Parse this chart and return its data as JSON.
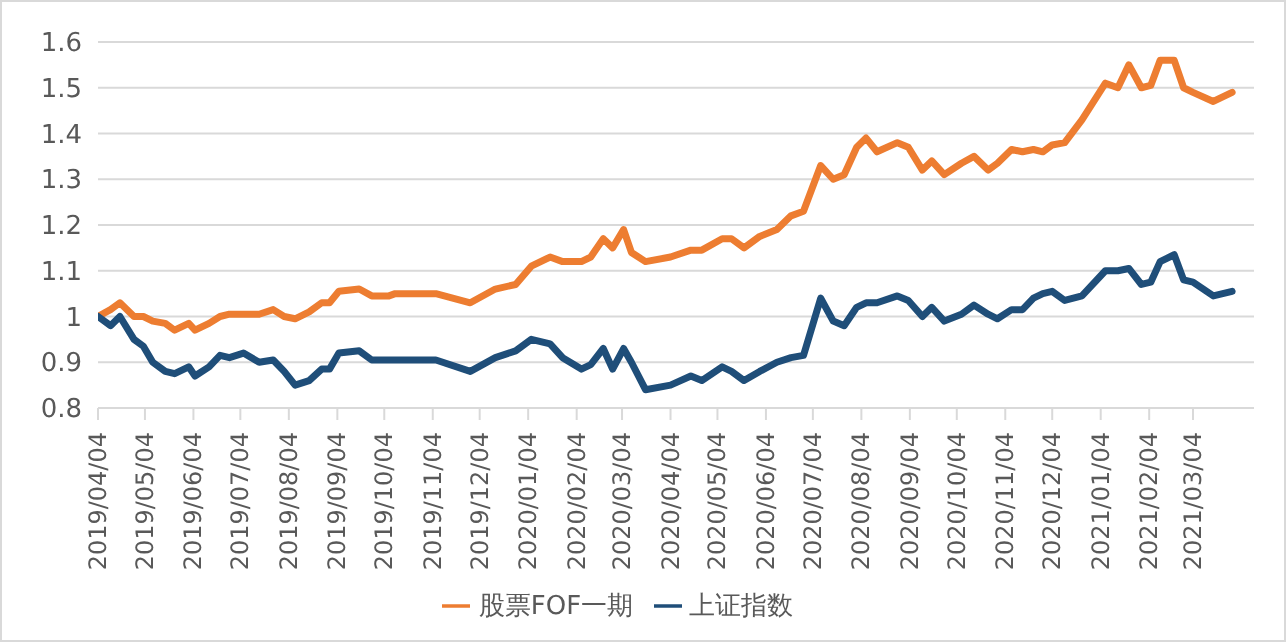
{
  "chart_data": {
    "type": "line",
    "x": [
      "2019-04-04",
      "2019-04-12",
      "2019-04-18",
      "2019-04-27",
      "2019-05-03",
      "2019-05-09",
      "2019-05-17",
      "2019-05-23",
      "2019-06-01",
      "2019-06-05",
      "2019-06-14",
      "2019-06-21",
      "2019-06-27",
      "2019-07-06",
      "2019-07-16",
      "2019-07-25",
      "2019-08-01",
      "2019-08-08",
      "2019-08-17",
      "2019-08-25",
      "2019-08-30",
      "2019-09-05",
      "2019-09-18",
      "2019-09-26",
      "2019-10-07",
      "2019-10-11",
      "2019-10-24",
      "2019-11-06",
      "2019-11-28",
      "2019-12-14",
      "2019-12-27",
      "2020-01-06",
      "2020-01-18",
      "2020-01-26",
      "2020-02-07",
      "2020-02-13",
      "2020-02-21",
      "2020-02-27",
      "2020-03-05",
      "2020-03-10",
      "2020-03-19",
      "2020-04-04",
      "2020-04-17",
      "2020-04-24",
      "2020-05-07",
      "2020-05-13",
      "2020-05-21",
      "2020-05-31",
      "2020-06-11",
      "2020-06-20",
      "2020-06-28",
      "2020-07-09",
      "2020-07-17",
      "2020-07-24",
      "2020-08-01",
      "2020-08-07",
      "2020-08-14",
      "2020-08-27",
      "2020-09-03",
      "2020-09-12",
      "2020-09-18",
      "2020-09-26",
      "2020-10-07",
      "2020-10-15",
      "2020-10-24",
      "2020-10-30",
      "2020-11-08",
      "2020-11-15",
      "2020-11-22",
      "2020-11-28",
      "2020-12-04",
      "2020-12-12",
      "2020-12-23",
      "2021-01-07",
      "2021-01-15",
      "2021-01-22",
      "2021-01-30",
      "2021-02-05",
      "2021-02-11",
      "2021-02-20",
      "2021-02-26",
      "2021-03-04",
      "2021-03-17",
      "2021-03-29"
    ],
    "series": [
      {
        "name": "股票FOF一期",
        "color": "#ed7d31",
        "values": [
          1.0,
          1.015,
          1.03,
          1.0,
          1.0,
          0.99,
          0.985,
          0.97,
          0.985,
          0.97,
          0.985,
          1.0,
          1.005,
          1.005,
          1.005,
          1.015,
          1.0,
          0.995,
          1.01,
          1.03,
          1.03,
          1.055,
          1.06,
          1.045,
          1.045,
          1.05,
          1.05,
          1.05,
          1.03,
          1.06,
          1.07,
          1.11,
          1.13,
          1.12,
          1.12,
          1.13,
          1.17,
          1.15,
          1.19,
          1.14,
          1.12,
          1.13,
          1.145,
          1.145,
          1.17,
          1.17,
          1.15,
          1.175,
          1.19,
          1.22,
          1.23,
          1.33,
          1.3,
          1.31,
          1.37,
          1.39,
          1.36,
          1.38,
          1.37,
          1.32,
          1.34,
          1.31,
          1.335,
          1.35,
          1.32,
          1.335,
          1.365,
          1.36,
          1.365,
          1.36,
          1.375,
          1.38,
          1.43,
          1.51,
          1.5,
          1.55,
          1.5,
          1.505,
          1.56,
          1.56,
          1.5,
          1.49,
          1.47,
          1.49
        ]
      },
      {
        "name": "上证指数",
        "color": "#1f4e79",
        "values": [
          1.0,
          0.98,
          1.0,
          0.95,
          0.935,
          0.9,
          0.88,
          0.875,
          0.89,
          0.87,
          0.89,
          0.915,
          0.91,
          0.92,
          0.9,
          0.905,
          0.88,
          0.85,
          0.86,
          0.885,
          0.885,
          0.92,
          0.925,
          0.905,
          0.905,
          0.905,
          0.905,
          0.905,
          0.88,
          0.91,
          0.925,
          0.95,
          0.94,
          0.91,
          0.885,
          0.895,
          0.93,
          0.885,
          0.93,
          0.9,
          0.84,
          0.85,
          0.87,
          0.86,
          0.89,
          0.88,
          0.86,
          0.88,
          0.9,
          0.91,
          0.915,
          1.04,
          0.99,
          0.98,
          1.02,
          1.03,
          1.03,
          1.045,
          1.035,
          1.0,
          1.02,
          0.99,
          1.005,
          1.025,
          1.005,
          0.995,
          1.015,
          1.015,
          1.04,
          1.05,
          1.055,
          1.035,
          1.045,
          1.1,
          1.1,
          1.105,
          1.07,
          1.075,
          1.12,
          1.135,
          1.08,
          1.075,
          1.045,
          1.055
        ]
      }
    ],
    "xlim": [
      "2019-04-04",
      "2021-04-12"
    ],
    "xticks": [
      {
        "value": "2019-04-04",
        "label": "2019/04/04"
      },
      {
        "value": "2019-05-04",
        "label": "2019/05/04"
      },
      {
        "value": "2019-06-04",
        "label": "2019/06/04"
      },
      {
        "value": "2019-07-04",
        "label": "2019/07/04"
      },
      {
        "value": "2019-08-04",
        "label": "2019/08/04"
      },
      {
        "value": "2019-09-04",
        "label": "2019/09/04"
      },
      {
        "value": "2019-10-04",
        "label": "2019/10/04"
      },
      {
        "value": "2019-11-04",
        "label": "2019/11/04"
      },
      {
        "value": "2019-12-04",
        "label": "2019/12/04"
      },
      {
        "value": "2020-01-04",
        "label": "2020/01/04"
      },
      {
        "value": "2020-02-04",
        "label": "2020/02/04"
      },
      {
        "value": "2020-03-04",
        "label": "2020/03/04"
      },
      {
        "value": "2020-04-04",
        "label": "2020/04/04"
      },
      {
        "value": "2020-05-04",
        "label": "2020/05/04"
      },
      {
        "value": "2020-06-04",
        "label": "2020/06/04"
      },
      {
        "value": "2020-07-04",
        "label": "2020/07/04"
      },
      {
        "value": "2020-08-04",
        "label": "2020/08/04"
      },
      {
        "value": "2020-09-04",
        "label": "2020/09/04"
      },
      {
        "value": "2020-10-04",
        "label": "2020/10/04"
      },
      {
        "value": "2020-11-04",
        "label": "2020/11/04"
      },
      {
        "value": "2020-12-04",
        "label": "2020/12/04"
      },
      {
        "value": "2021-01-04",
        "label": "2021/01/04"
      },
      {
        "value": "2021-02-04",
        "label": "2021/02/04"
      },
      {
        "value": "2021-03-04",
        "label": "2021/03/04"
      }
    ],
    "ylim": [
      0.8,
      1.6
    ],
    "yticks": [
      0.8,
      0.9,
      1,
      1.1,
      1.2,
      1.3,
      1.4,
      1.5,
      1.6
    ],
    "grid": "y",
    "legend": "bottom",
    "marker": "none",
    "line_style": "solid"
  }
}
